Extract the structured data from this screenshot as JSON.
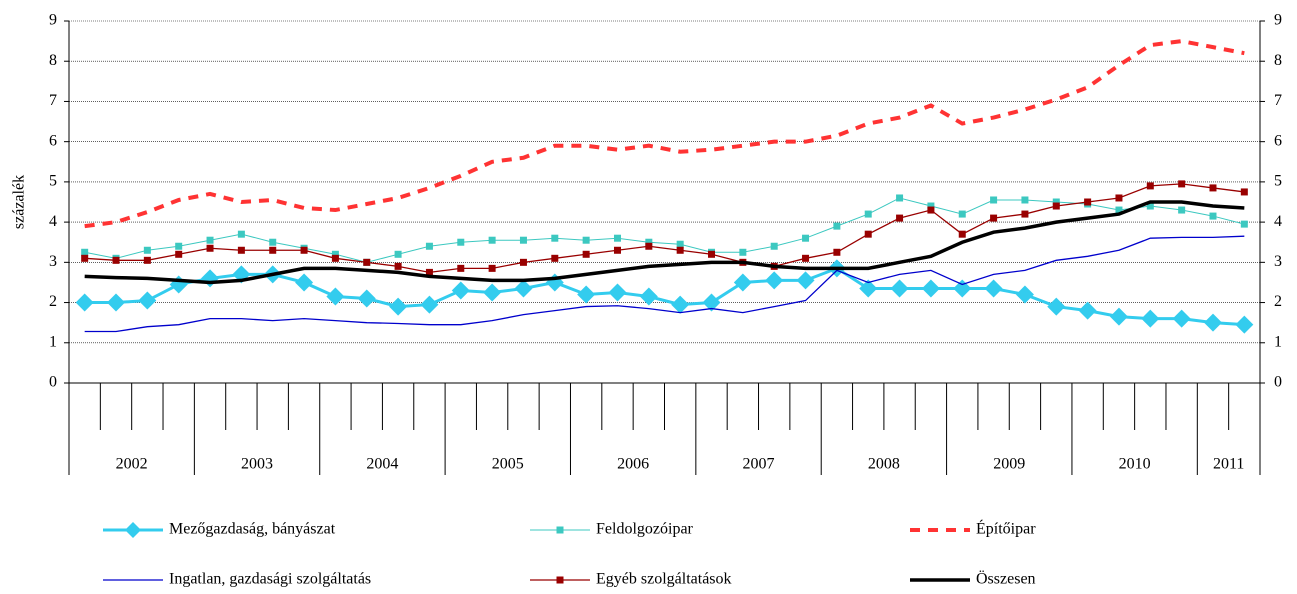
{
  "chart_data": {
    "type": "line",
    "ylabel": "százalék",
    "year_labels": [
      "2002",
      "2003",
      "2004",
      "2005",
      "2006",
      "2007",
      "2008",
      "2009",
      "2010",
      "2011"
    ],
    "ylim": [
      0,
      9
    ],
    "yticks": [
      0,
      1,
      2,
      3,
      4,
      5,
      6,
      7,
      8,
      9
    ],
    "y2lim": [
      0,
      9
    ],
    "y2ticks": [
      0,
      1,
      2,
      3,
      4,
      5,
      6,
      7,
      8,
      9
    ],
    "series": [
      {
        "name": "Mezőgazdaság, bányászat",
        "color": "#33ccee",
        "marker": "diamond",
        "values": [
          2.0,
          2.0,
          2.05,
          2.45,
          2.6,
          2.7,
          2.7,
          2.5,
          2.15,
          2.1,
          1.9,
          1.95,
          2.3,
          2.25,
          2.35,
          2.5,
          2.2,
          2.25,
          2.15,
          1.95,
          2.0,
          2.5,
          2.55,
          2.55,
          2.85,
          2.35,
          2.35,
          2.35,
          2.35,
          2.35,
          2.2,
          1.9,
          1.8,
          1.65,
          1.6,
          1.6,
          1.5,
          1.45
        ]
      },
      {
        "name": "Feldolgozóipar",
        "color": "#3cc8c0",
        "marker": "square",
        "values": [
          3.25,
          3.1,
          3.3,
          3.4,
          3.55,
          3.7,
          3.5,
          3.35,
          3.2,
          3.0,
          3.2,
          3.4,
          3.5,
          3.55,
          3.55,
          3.6,
          3.55,
          3.6,
          3.5,
          3.45,
          3.25,
          3.25,
          3.4,
          3.6,
          3.9,
          4.2,
          4.6,
          4.4,
          4.2,
          4.55,
          4.55,
          4.5,
          4.45,
          4.3,
          4.4,
          4.3,
          4.15,
          3.95
        ]
      },
      {
        "name": "Építőipar",
        "color": "#ff3333",
        "dashed": true,
        "values": [
          3.9,
          4.0,
          4.25,
          4.55,
          4.7,
          4.5,
          4.55,
          4.35,
          4.3,
          4.45,
          4.6,
          4.85,
          5.15,
          5.5,
          5.6,
          5.9,
          5.9,
          5.8,
          5.9,
          5.75,
          5.8,
          5.9,
          6.0,
          6.0,
          6.15,
          6.45,
          6.6,
          6.9,
          6.45,
          6.6,
          6.8,
          7.05,
          7.35,
          7.9,
          8.4,
          8.5,
          8.35,
          8.2
        ]
      },
      {
        "name": "Ingatlan, gazdasági szolgáltatás",
        "color": "#0000cc",
        "values": [
          1.28,
          1.28,
          1.4,
          1.45,
          1.6,
          1.6,
          1.55,
          1.6,
          1.55,
          1.5,
          1.48,
          1.45,
          1.45,
          1.55,
          1.7,
          1.8,
          1.9,
          1.92,
          1.85,
          1.75,
          1.85,
          1.75,
          1.9,
          2.05,
          2.8,
          2.5,
          2.7,
          2.8,
          2.45,
          2.7,
          2.8,
          3.05,
          3.15,
          3.3,
          3.6,
          3.62,
          3.62,
          3.65
        ]
      },
      {
        "name": "Egyéb szolgáltatások",
        "color": "#990000",
        "marker": "square",
        "values": [
          3.1,
          3.05,
          3.05,
          3.2,
          3.35,
          3.3,
          3.3,
          3.3,
          3.1,
          3.0,
          2.9,
          2.75,
          2.85,
          2.85,
          3.0,
          3.1,
          3.2,
          3.3,
          3.4,
          3.3,
          3.2,
          3.0,
          2.9,
          3.1,
          3.25,
          3.7,
          4.1,
          4.3,
          3.7,
          4.1,
          4.2,
          4.4,
          4.5,
          4.6,
          4.9,
          4.95,
          4.85,
          4.75
        ]
      },
      {
        "name": "Összesen",
        "color": "#000000",
        "values": [
          2.65,
          2.62,
          2.6,
          2.55,
          2.5,
          2.55,
          2.7,
          2.85,
          2.85,
          2.8,
          2.75,
          2.65,
          2.6,
          2.55,
          2.55,
          2.6,
          2.7,
          2.8,
          2.9,
          2.95,
          3.0,
          3.0,
          2.9,
          2.85,
          2.85,
          2.85,
          3.0,
          3.15,
          3.5,
          3.75,
          3.85,
          4.0,
          4.1,
          4.2,
          4.5,
          4.5,
          4.4,
          4.35
        ]
      }
    ]
  }
}
